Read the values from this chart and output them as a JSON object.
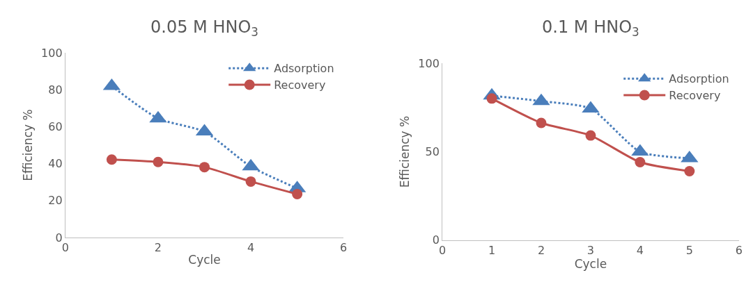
{
  "chart_data": [
    {
      "type": "line",
      "title": "0.05 M HNO$_{3}$",
      "xlabel": "Cycle",
      "ylabel": "Efficiency %",
      "x": [
        1,
        2,
        3,
        4,
        5
      ],
      "series": [
        {
          "name": "Adsorption",
          "color": "#4a7ebb",
          "values": [
            82,
            64.4,
            57.3,
            38.4,
            26.6
          ],
          "marker": "triangle",
          "line_style": "dotted"
        },
        {
          "name": "Recovery",
          "color": "#c0504d",
          "values": [
            42.2,
            40.9,
            38.1,
            30.3,
            23.5
          ],
          "marker": "circle",
          "line_style": "solid"
        }
      ],
      "xlim": [
        0,
        6
      ],
      "xticks": [
        0,
        2,
        4,
        6
      ],
      "ylim": [
        0,
        100
      ],
      "yticks": [
        0,
        20,
        40,
        60,
        80,
        100
      ],
      "legend": "top right"
    },
    {
      "type": "line",
      "title": "0.1 M HNO$_{3}$",
      "xlabel": "Cycle",
      "ylabel": "Efficiency %",
      "x": [
        1,
        2,
        3,
        4,
        5
      ],
      "series": [
        {
          "name": "Adsorption",
          "color": "#4a7ebb",
          "values": [
            81.7,
            78.6,
            74.4,
            50,
            46.3
          ],
          "marker": "triangle",
          "line_style": "dotted"
        },
        {
          "name": "Recovery",
          "color": "#c0504d",
          "values": [
            80.1,
            66.3,
            59.2,
            44.1,
            39
          ],
          "marker": "circle",
          "line_style": "solid"
        }
      ],
      "xlim": [
        0,
        6
      ],
      "xticks": [
        0,
        1,
        2,
        3,
        4,
        5,
        6
      ],
      "ylim": [
        0,
        100
      ],
      "yticks": [
        0,
        50,
        100
      ],
      "legend": "top right"
    }
  ]
}
